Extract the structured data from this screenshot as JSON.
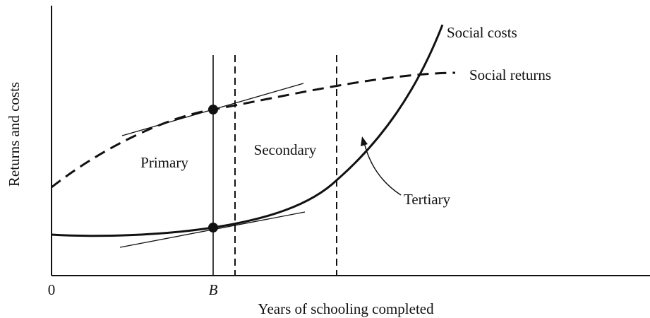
{
  "axes": {
    "y_label": "Returns and costs",
    "x_label": "Years of schooling completed",
    "origin": "0",
    "b_marker": "B"
  },
  "curves": {
    "costs": "Social costs",
    "returns": "Social returns"
  },
  "regions": {
    "primary": "Primary",
    "secondary": "Secondary",
    "tertiary": "Tertiary"
  }
}
